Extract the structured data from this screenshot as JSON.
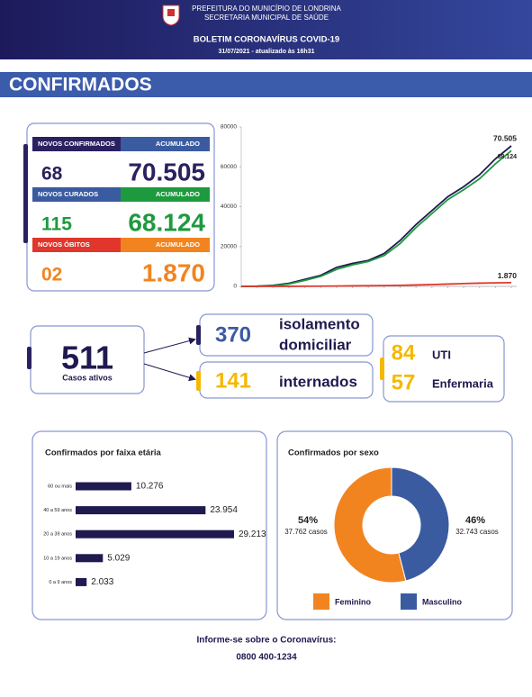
{
  "header": {
    "line1": "PREFEITURA DO MUNICÍPIO DE LONDRINA",
    "line2": "SECRETARIA MUNICIPAL DE SAÚDE",
    "title": "BOLETIM CORONAVÍRUS COVID-19",
    "date": "31/07/2021 - atualizado às 16h31"
  },
  "section": "CONFIRMADOS",
  "summary": [
    {
      "label": "NOVOS CONFIRMADOS",
      "total_label": "ACUMULADO",
      "new": "68",
      "total": "70.505"
    },
    {
      "label": "NOVOS CURADOS",
      "total_label": "ACUMULADO",
      "new": "115",
      "total": "68.124"
    },
    {
      "label": "NOVOS ÓBITOS",
      "total_label": "ACUMULADO",
      "new": "02",
      "total": "1.870"
    }
  ],
  "active": {
    "value": "511",
    "label": "Casos ativos"
  },
  "isolation": {
    "value": "370",
    "label": [
      "isolamento",
      "domiciliar"
    ]
  },
  "hospitalized": {
    "value": "141",
    "label": "internados"
  },
  "icu": {
    "value": "84",
    "label": "UTI"
  },
  "ward": {
    "value": "57",
    "label": "Enfermaria"
  },
  "chart_data": [
    {
      "type": "line",
      "categories": [
        null,
        null,
        null,
        null,
        null,
        null,
        null,
        null,
        null,
        null,
        null,
        null,
        null,
        null,
        null,
        null,
        null,
        null
      ],
      "ylim": [
        0,
        80000
      ],
      "yticks": [
        0,
        20000,
        40000,
        60000,
        80000
      ],
      "series": [
        {
          "color": "#1f1a4f",
          "values": [
            0,
            100,
            500,
            1500,
            3500,
            5500,
            9500,
            11500,
            13000,
            16500,
            23000,
            31000,
            38000,
            45000,
            50000,
            56000,
            64000,
            70505
          ],
          "value_labels": [
            null,
            null,
            null,
            null,
            null,
            null,
            null,
            null,
            null,
            null,
            null,
            null,
            null,
            null,
            null,
            null,
            null,
            "70.505"
          ]
        },
        {
          "color": "#1e9a3e",
          "values": [
            0,
            50,
            300,
            1200,
            3000,
            5000,
            8500,
            10800,
            12500,
            15500,
            21500,
            29500,
            36500,
            43500,
            48500,
            54000,
            61500,
            68124
          ],
          "value_labels": [
            null,
            null,
            null,
            null,
            null,
            null,
            null,
            null,
            null,
            null,
            null,
            null,
            null,
            null,
            null,
            null,
            null,
            "68.124"
          ]
        },
        {
          "color": "#e0362c",
          "values": [
            0,
            2,
            10,
            30,
            60,
            100,
            180,
            250,
            300,
            380,
            520,
            700,
            900,
            1150,
            1400,
            1600,
            1750,
            1870
          ],
          "value_labels": [
            null,
            null,
            null,
            null,
            null,
            null,
            null,
            null,
            null,
            null,
            null,
            null,
            null,
            null,
            null,
            null,
            null,
            "1.870"
          ]
        }
      ]
    },
    {
      "type": "barh",
      "title": "Confirmados por faixa etária",
      "color": "#1f1a4f",
      "categories": [
        "60 ou mais",
        "40 a 59 anos",
        "20 a 39 anos",
        "10 a 19 anos",
        "0 a 9 anos"
      ],
      "values": [
        10276,
        23954,
        29213,
        5029,
        2033
      ],
      "value_labels": [
        "10.276",
        "23.954",
        "29.213",
        "5.029",
        "2.033"
      ]
    },
    {
      "type": "pie",
      "title": "Confirmados por sexo",
      "categories": [
        "Feminino",
        "Masculino"
      ],
      "colors": [
        "#f2841f",
        "#3a5ba0"
      ],
      "values": [
        54,
        46
      ],
      "value_labels": [
        "54%",
        "46%"
      ],
      "counts": [
        37762,
        32743
      ],
      "count_labels": [
        "37.762 casos",
        "32.743 casos"
      ]
    }
  ],
  "footer": {
    "line1": "Informe-se sobre o Coronavírus:",
    "phone": "0800 400-1234"
  }
}
